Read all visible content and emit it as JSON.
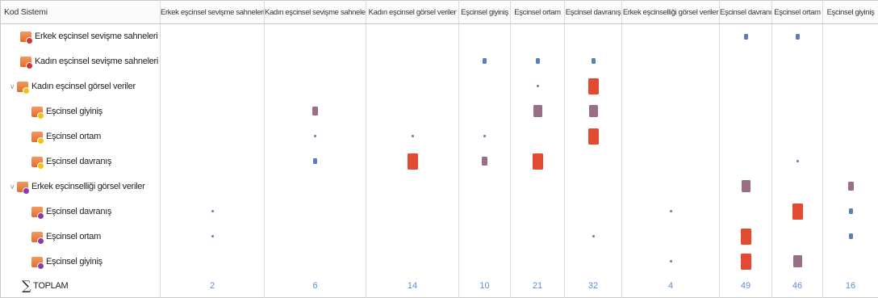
{
  "header": {
    "code_system_label": "Kod Sistemi",
    "columns": [
      "Erkek eşcinsel sevişme sahneleri",
      "Kadın eşcinsel sevişme sahneleri",
      "Kadın eşcinsel  görsel veriler",
      "Eşcinsel giyiniş",
      "Eşcinsel ortam",
      "Eşcinsel davranış",
      "Erkek eşcinselliği görsel veriler",
      "Eşcinsel davranış",
      "Eşcinsel ortam",
      "Eşcinsel giyiniş"
    ]
  },
  "colors": {
    "low": "#5b7fb6",
    "mid": "#9a6e86",
    "high": "#e24a32",
    "code_icon": "#e8793b",
    "dot_red": "#d8322a",
    "dot_yellow": "#f2c21b",
    "dot_purple": "#8e3aa8",
    "total": "#5b8ed6"
  },
  "rows": [
    {
      "label": "Erkek eşcinsel sevişme sahneleri",
      "indent": 1,
      "expander": false,
      "icon": "code-red-dot-icon",
      "dot": "red",
      "cells": [
        0,
        0,
        0,
        0,
        0,
        0,
        0,
        2,
        2,
        0
      ]
    },
    {
      "label": "Kadın eşcinsel sevişme sahneleri",
      "indent": 1,
      "expander": false,
      "icon": "code-red-dot-icon",
      "dot": "red",
      "cells": [
        0,
        0,
        0,
        2,
        2,
        2,
        0,
        0,
        0,
        0
      ]
    },
    {
      "label": "Kadın eşcinsel  görsel veriler",
      "indent": 0,
      "expander": true,
      "icon": "code-yellow-dot-icon",
      "dot": "yellow",
      "cells": [
        0,
        0,
        0,
        0,
        1,
        5,
        0,
        0,
        0,
        0
      ]
    },
    {
      "label": "Eşcinsel giyiniş",
      "indent": 2,
      "expander": false,
      "icon": "code-yellow-dot-icon",
      "dot": "yellow",
      "cells": [
        0,
        3,
        0,
        0,
        4,
        4,
        0,
        0,
        0,
        0
      ]
    },
    {
      "label": "Eşcinsel ortam",
      "indent": 2,
      "expander": false,
      "icon": "code-yellow-dot-icon",
      "dot": "yellow",
      "cells": [
        0,
        1,
        1,
        1,
        0,
        5,
        0,
        0,
        0,
        0
      ]
    },
    {
      "label": "Eşcinsel davranış",
      "indent": 2,
      "expander": false,
      "icon": "code-yellow-dot-icon",
      "dot": "yellow",
      "cells": [
        0,
        2,
        5,
        3,
        5,
        0,
        0,
        0,
        1,
        0
      ]
    },
    {
      "label": "Erkek eşcinselliği görsel veriler",
      "indent": 0,
      "expander": true,
      "icon": "code-purple-dot-icon",
      "dot": "purple",
      "cells": [
        0,
        0,
        0,
        0,
        0,
        0,
        0,
        4,
        0,
        3
      ]
    },
    {
      "label": "Eşcinsel davranış",
      "indent": 2,
      "expander": false,
      "icon": "code-purple-dot-icon",
      "dot": "purple",
      "cells": [
        1,
        0,
        0,
        0,
        0,
        0,
        1,
        0,
        5,
        2
      ]
    },
    {
      "label": "Eşcinsel ortam",
      "indent": 2,
      "expander": false,
      "icon": "code-purple-dot-icon",
      "dot": "purple",
      "cells": [
        1,
        0,
        0,
        0,
        0,
        1,
        0,
        5,
        0,
        2
      ]
    },
    {
      "label": "Eşcinsel giyiniş",
      "indent": 2,
      "expander": false,
      "icon": "code-purple-dot-icon",
      "dot": "purple",
      "cells": [
        0,
        0,
        0,
        0,
        0,
        0,
        1,
        5,
        4,
        0
      ]
    }
  ],
  "total": {
    "label": "TOPLAM",
    "icon": "sigma-icon",
    "values": [
      "2",
      "6",
      "14",
      "10",
      "21",
      "32",
      "4",
      "49",
      "46",
      "16"
    ]
  }
}
